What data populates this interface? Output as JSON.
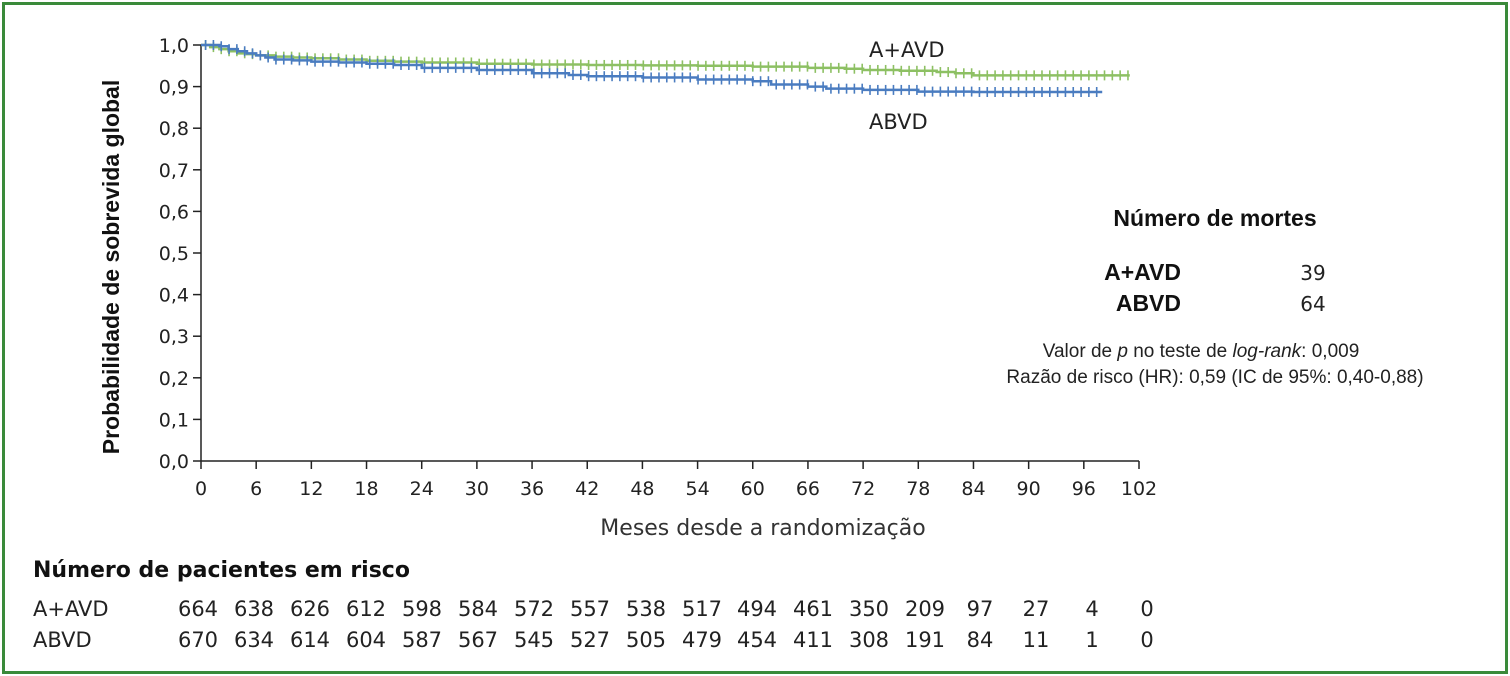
{
  "chart_data": {
    "type": "line",
    "title": "",
    "xlabel": "Meses desde a randomização",
    "ylabel": "Probabilidade de sobrevida global",
    "xlim": [
      0,
      102
    ],
    "ylim": [
      0,
      1
    ],
    "xticks": [
      0,
      6,
      12,
      18,
      24,
      30,
      36,
      42,
      48,
      54,
      60,
      66,
      72,
      78,
      84,
      90,
      96,
      102
    ],
    "yticks": [
      "0,0",
      "0,1",
      "0,2",
      "0,3",
      "0,4",
      "0,5",
      "0,6",
      "0,7",
      "0,8",
      "0,9",
      "1,0"
    ],
    "series": [
      {
        "name": "A+AVD",
        "color": "#8dc063",
        "x": [
          0,
          1,
          2,
          3,
          4,
          5,
          6,
          8,
          10,
          12,
          15,
          18,
          21,
          24,
          30,
          36,
          42,
          48,
          54,
          60,
          66,
          70,
          72,
          76,
          80,
          82,
          84,
          90,
          96,
          101
        ],
        "y": [
          1.0,
          0.995,
          0.99,
          0.985,
          0.98,
          0.978,
          0.975,
          0.972,
          0.97,
          0.968,
          0.965,
          0.962,
          0.96,
          0.958,
          0.955,
          0.953,
          0.952,
          0.951,
          0.95,
          0.948,
          0.945,
          0.943,
          0.94,
          0.938,
          0.935,
          0.932,
          0.927,
          0.927,
          0.927,
          0.927
        ]
      },
      {
        "name": "ABVD",
        "color": "#4a7cc0",
        "x": [
          0,
          2,
          3,
          4,
          5,
          6,
          7,
          8,
          10,
          12,
          15,
          18,
          21,
          24,
          30,
          36,
          40,
          42,
          48,
          54,
          60,
          62,
          66,
          68,
          72,
          78,
          84,
          90,
          98
        ],
        "y": [
          1.0,
          0.997,
          0.99,
          0.985,
          0.98,
          0.975,
          0.97,
          0.965,
          0.963,
          0.96,
          0.958,
          0.955,
          0.952,
          0.945,
          0.94,
          0.932,
          0.928,
          0.925,
          0.922,
          0.917,
          0.913,
          0.905,
          0.9,
          0.895,
          0.892,
          0.888,
          0.887,
          0.887,
          0.887
        ]
      }
    ],
    "series_labels": [
      "A+AVD",
      "ABVD"
    ]
  },
  "deaths": {
    "title": "Número de mortes",
    "rows": [
      {
        "label": "A+AVD",
        "value": "39"
      },
      {
        "label": "ABVD",
        "value": "64"
      }
    ],
    "stat1_pre": "Valor de ",
    "stat1_p": "p",
    "stat1_mid": " no teste de ",
    "stat1_logrank": "log-rank",
    "stat1_post": ": 0,009",
    "stat2": "Razão de risco (HR): 0,59 (IC de 95%: 0,40-0,88)"
  },
  "risk_table": {
    "title": "Número de pacientes em risco",
    "rows": [
      {
        "label": "A+AVD",
        "values": [
          "664",
          "638",
          "626",
          "612",
          "598",
          "584",
          "572",
          "557",
          "538",
          "517",
          "494",
          "461",
          "350",
          "209",
          "97",
          "27",
          "4",
          "0"
        ]
      },
      {
        "label": "ABVD",
        "values": [
          "670",
          "634",
          "614",
          "604",
          "587",
          "567",
          "545",
          "527",
          "505",
          "479",
          "454",
          "411",
          "308",
          "191",
          "84",
          "11",
          "1",
          "0"
        ]
      }
    ]
  }
}
